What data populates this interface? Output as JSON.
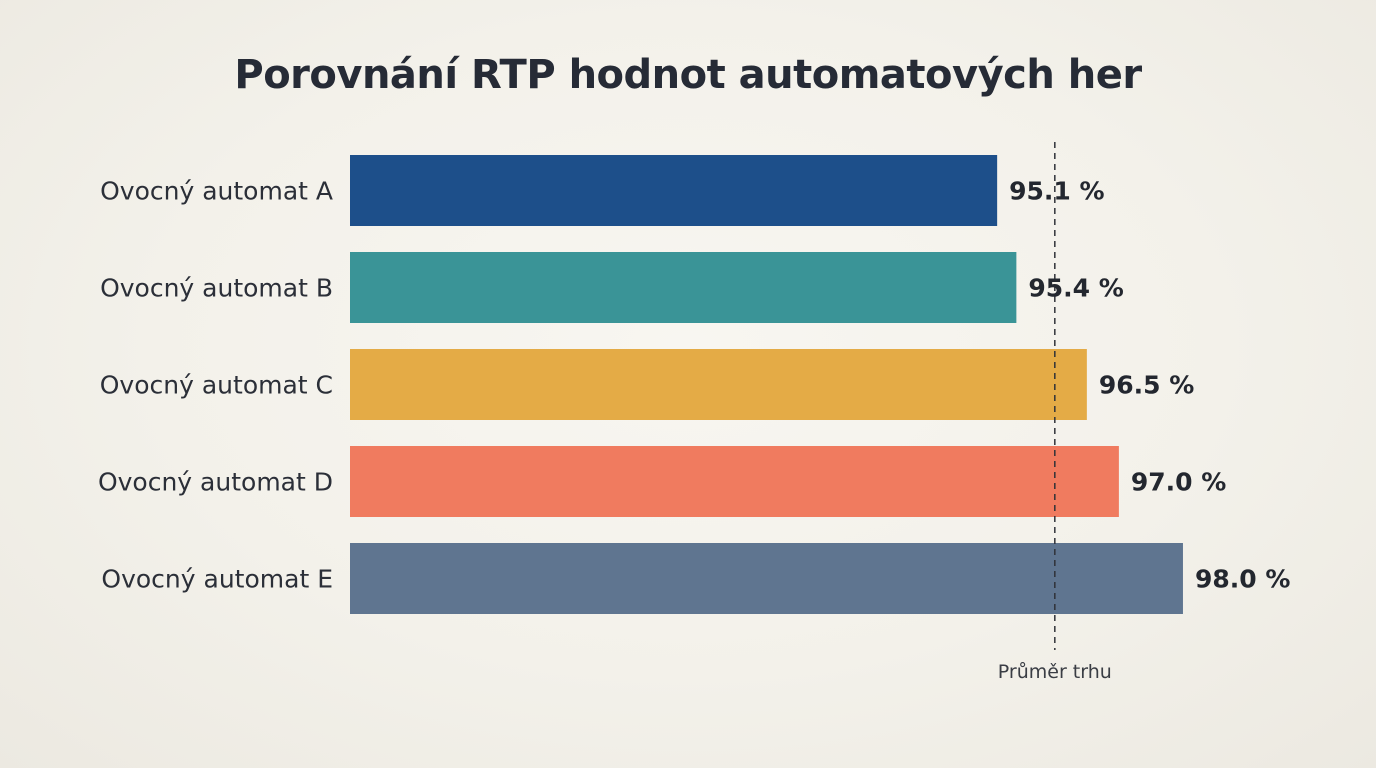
{
  "chart_data": {
    "type": "bar",
    "orientation": "horizontal",
    "title": "Porovnání RTP hodnot automatových her",
    "categories": [
      "Ovocný automat A",
      "Ovocný automat B",
      "Ovocný automat C",
      "Ovocný automat D",
      "Ovocný automat E"
    ],
    "values": [
      95.1,
      95.4,
      96.5,
      97.0,
      98.0
    ],
    "value_labels": [
      "95.1 %",
      "95.4 %",
      "96.5 %",
      "97.0 %",
      "98.0 %"
    ],
    "colors": [
      "#1d4f8a",
      "#3a9497",
      "#e4ab46",
      "#f07b5f",
      "#5f7590"
    ],
    "reference_line": {
      "label": "Průměr trhu",
      "value": 96.0,
      "style": "dashed"
    },
    "xlim": [
      85,
      98.5
    ],
    "grid": false,
    "legend": "none"
  }
}
